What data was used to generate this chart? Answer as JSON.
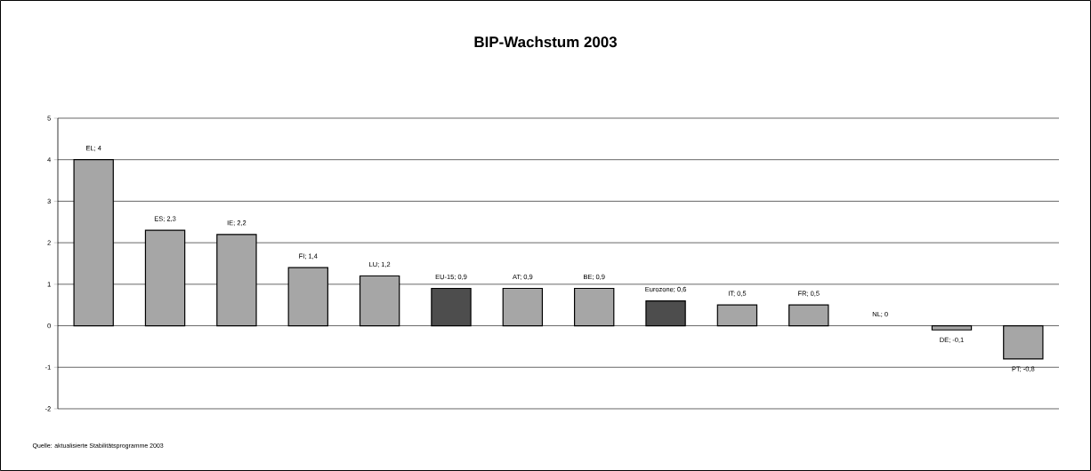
{
  "chart_data": {
    "type": "bar",
    "title": "BIP-Wachstum 2003",
    "categories": [
      null,
      null,
      null,
      null,
      null,
      null,
      null,
      null,
      null,
      null,
      null,
      null,
      null,
      null
    ],
    "values": [
      4,
      2.3,
      2.2,
      1.4,
      1.2,
      0.9,
      0.9,
      0.9,
      0.6,
      0.5,
      0.5,
      0,
      -0.1,
      -0.8
    ],
    "value_labels": [
      "EL; 4",
      "ES; 2,3",
      "IE; 2,2",
      "FI; 1,4",
      "LU; 1,2",
      "EU-15; 0,9",
      "AT; 0,9",
      "BE; 0,9",
      "Eurozone; 0,6",
      "IT; 0,5",
      "FR; 0,5",
      "NL; 0",
      "DE; -0,1",
      "PT; -0,8"
    ],
    "colors": [
      "#a6a6a6",
      "#a6a6a6",
      "#a6a6a6",
      "#a6a6a6",
      "#a6a6a6",
      "#4d4d4d",
      "#a6a6a6",
      "#a6a6a6",
      "#4d4d4d",
      "#a6a6a6",
      "#a6a6a6",
      "#a6a6a6",
      "#a6a6a6",
      "#a6a6a6"
    ],
    "ylim": [
      -2,
      5
    ],
    "yticks": [
      -2,
      -1,
      0,
      1,
      2,
      3,
      4,
      5
    ],
    "grid": "y",
    "annotations": [
      "Quelle: aktualisierte Stabilitätsprogramme 2003"
    ]
  }
}
